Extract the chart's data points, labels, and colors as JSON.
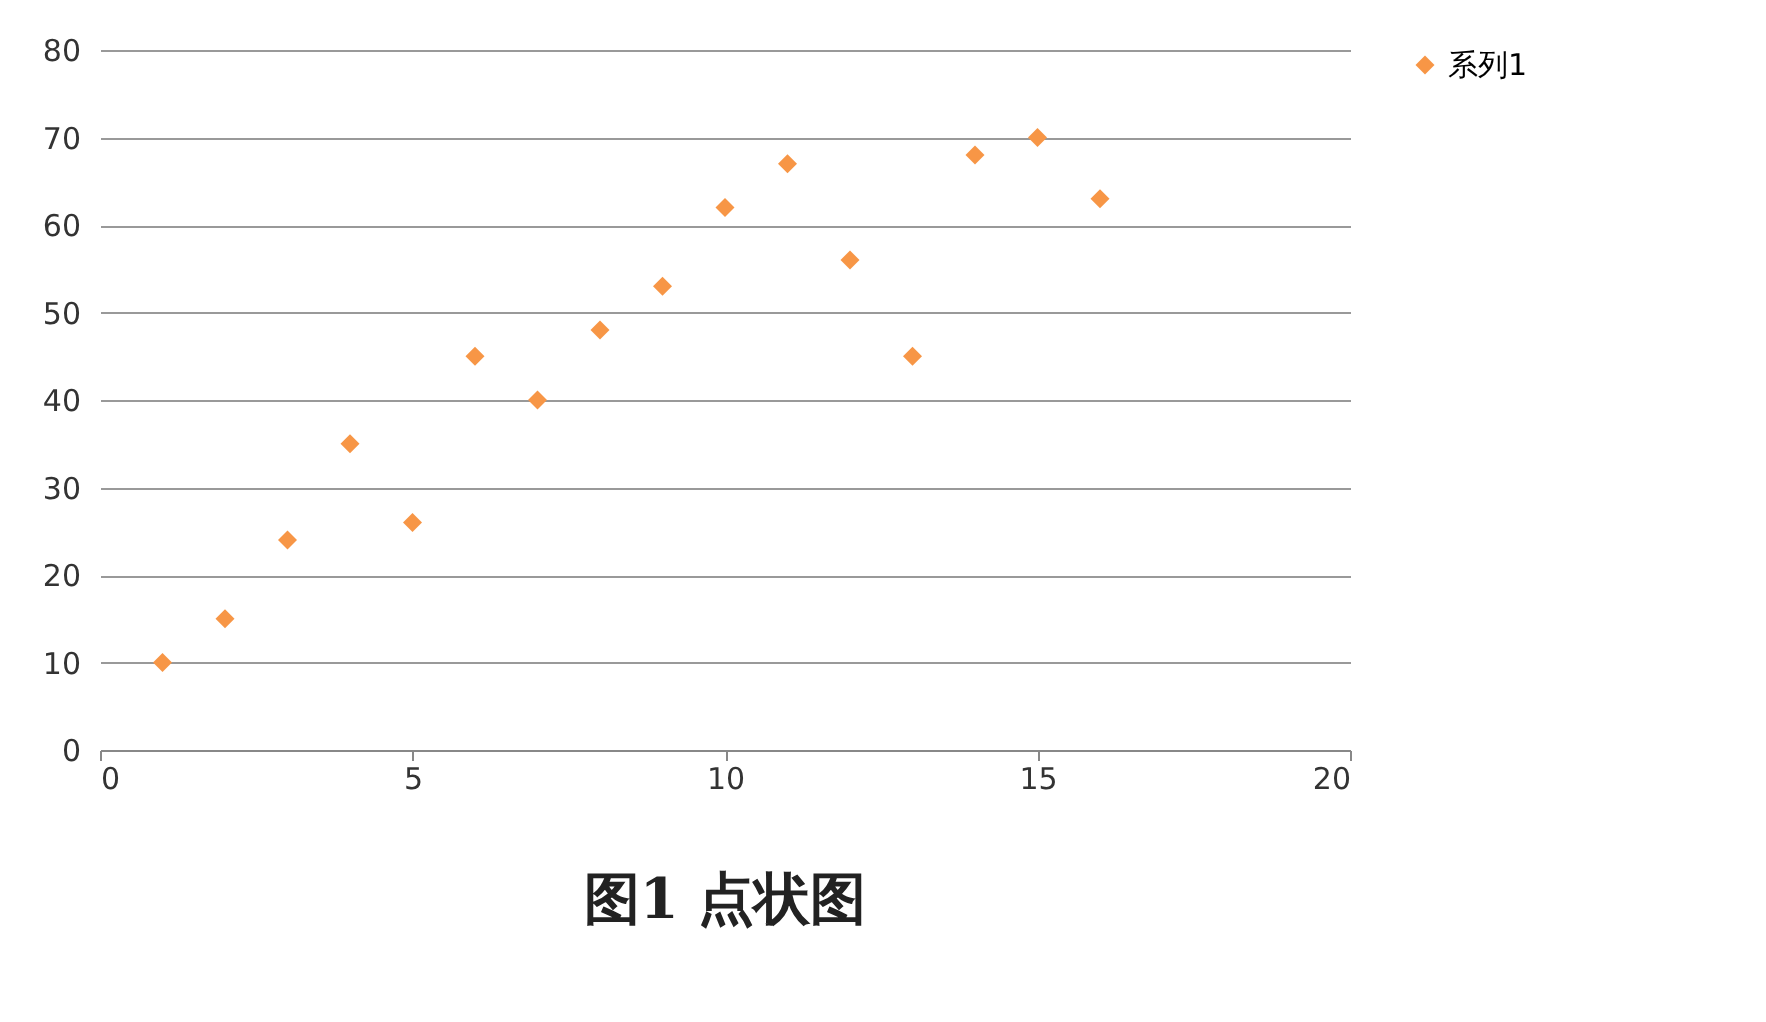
{
  "chart_data": {
    "type": "scatter",
    "title": "图1 点状图",
    "x": [
      1,
      2,
      3,
      4,
      5,
      6,
      7,
      8,
      9,
      10,
      11,
      12,
      13,
      14,
      15,
      16
    ],
    "series": [
      {
        "name": "系列1",
        "color": "#f79646",
        "values": [
          10,
          15,
          24,
          35,
          26,
          45,
          40,
          48,
          53,
          62,
          67,
          56,
          45,
          68,
          70,
          63
        ]
      }
    ],
    "xlim": [
      0,
      20
    ],
    "xticks": [
      0,
      5,
      10,
      15,
      20
    ],
    "ylim": [
      0,
      80
    ],
    "yticks": [
      0,
      10,
      20,
      30,
      40,
      50,
      60,
      70,
      80
    ],
    "grid": "y",
    "legend": "right",
    "marker": "diamond"
  }
}
